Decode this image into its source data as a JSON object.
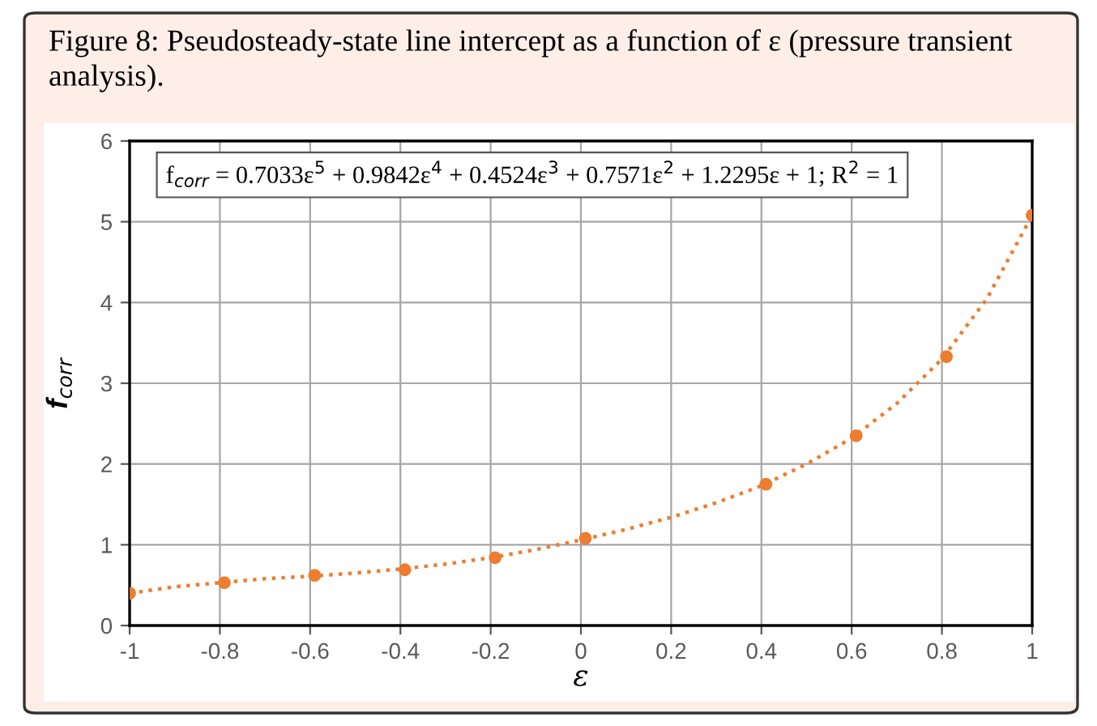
{
  "chart_data": {
    "type": "scatter",
    "title": "Figure 8: Pseudosteady-state line intercept as a function of ε (pressure transient analysis).",
    "xlabel": "ε",
    "ylabel": "f$_{corr}$",
    "annotations": [
      "f$_{corr}$ = 0.7033ε$^{5}$ + 0.9842ε$^{4}$ + 0.4524ε$^{3}$ + 0.7571ε$^{2}$ + 1.2295ε + 1; R$^{2}$ = 1"
    ],
    "series": [
      {
        "type": "line",
        "color": "#ed7d31",
        "line_style": "dotted",
        "marker": "none",
        "x": [
          -1,
          -0.9,
          -0.8,
          -0.7,
          -0.6,
          -0.5,
          -0.4,
          -0.3,
          -0.2,
          -0.1,
          0,
          0.1,
          0.2,
          0.3,
          0.4,
          0.5,
          0.6,
          0.7,
          0.8,
          0.9,
          1
        ],
        "values": [
          0.4,
          0.48,
          0.53,
          0.58,
          0.61,
          0.65,
          0.7,
          0.76,
          0.84,
          0.94,
          1.06,
          1.19,
          1.34,
          1.52,
          1.73,
          2.0,
          2.32,
          2.75,
          3.3,
          4.05,
          5.08
        ]
      },
      {
        "type": "scatter",
        "color": "#ed7d31",
        "marker": "circle",
        "x": [
          -1,
          -0.79,
          -0.59,
          -0.39,
          -0.19,
          0.01,
          0.41,
          0.61,
          0.81,
          1
        ],
        "values": [
          0.4,
          0.53,
          0.62,
          0.69,
          0.84,
          1.08,
          1.75,
          2.35,
          3.33,
          5.08
        ]
      }
    ],
    "xlim": [
      -1,
      1
    ],
    "xticks": [
      -1,
      -0.8,
      -0.6,
      -0.4,
      -0.2,
      0,
      0.2,
      0.4,
      0.6,
      0.8,
      1
    ],
    "ylim": [
      0,
      6
    ],
    "yticks": [
      0,
      1,
      2,
      3,
      4,
      5,
      6
    ],
    "grid": true,
    "legend": false
  }
}
